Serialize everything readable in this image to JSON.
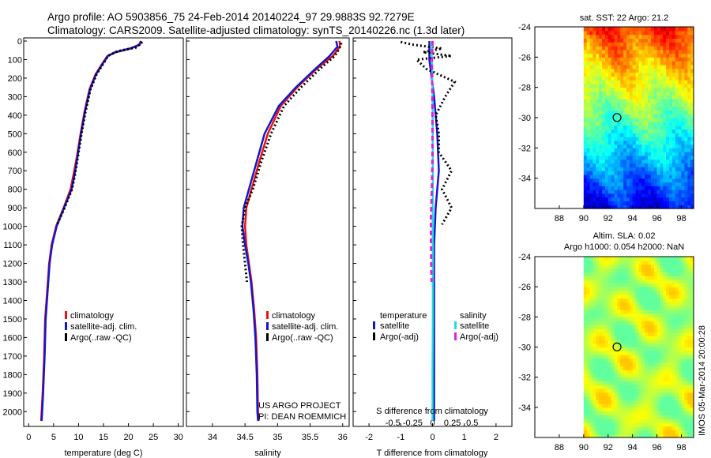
{
  "title": {
    "line1": "Argo profile: AO 5903856_75 24-Feb-2014 20140224_97 29.9883S 92.7279E",
    "line2": "Climatology: CARS2009. Satellite-adjusted climatology: synTS_20140226.nc (1.3d later)"
  },
  "timestamp": "IMOS 05-Mar-2014 20:00:28",
  "project_note": {
    "line1": "US ARGO PROJECT",
    "line2": "PI: DEAN ROEMMICH"
  },
  "colors": {
    "clim": "#ee1111",
    "sat": "#1515cc",
    "argo": "#000000",
    "sat_s": "#22dddd",
    "argo_s": "#dd22dd"
  },
  "chart_data": [
    {
      "id": "temperature",
      "type": "line",
      "xlabel": "temperature (deg C)",
      "xlim": [
        -1,
        31
      ],
      "xticks": [
        0,
        5,
        10,
        15,
        20,
        25,
        30
      ],
      "ylim": [
        0,
        2050
      ],
      "yticks": [
        0,
        100,
        200,
        300,
        400,
        500,
        600,
        700,
        800,
        900,
        1000,
        1100,
        1200,
        1300,
        1400,
        1500,
        1600,
        1700,
        1800,
        1900,
        2000
      ],
      "legend": [
        "climatology",
        "satellite-adj. clim.",
        "Argo(..raw -QC)"
      ],
      "series": [
        {
          "name": "climatology",
          "color": "#ee1111",
          "style": "solid",
          "points": [
            [
              22.5,
              0
            ],
            [
              22.3,
              20
            ],
            [
              20.5,
              40
            ],
            [
              17.5,
              60
            ],
            [
              15.8,
              80
            ],
            [
              14.8,
              120
            ],
            [
              13.4,
              180
            ],
            [
              12.2,
              260
            ],
            [
              11.2,
              380
            ],
            [
              10.4,
              500
            ],
            [
              9.7,
              620
            ],
            [
              9.0,
              720
            ],
            [
              8.4,
              800
            ],
            [
              7.0,
              900
            ],
            [
              5.5,
              1000
            ],
            [
              4.6,
              1100
            ],
            [
              4.1,
              1200
            ],
            [
              3.7,
              1350
            ],
            [
              3.3,
              1500
            ],
            [
              3.1,
              1700
            ],
            [
              2.8,
              1900
            ],
            [
              2.6,
              2000
            ],
            [
              2.5,
              2050
            ]
          ]
        },
        {
          "name": "satellite-adj. clim.",
          "color": "#1515cc",
          "style": "solid",
          "points": [
            [
              22.5,
              0
            ],
            [
              22.2,
              20
            ],
            [
              20.3,
              40
            ],
            [
              17.3,
              60
            ],
            [
              15.9,
              80
            ],
            [
              14.9,
              120
            ],
            [
              13.5,
              180
            ],
            [
              12.3,
              260
            ],
            [
              11.3,
              380
            ],
            [
              10.5,
              500
            ],
            [
              9.8,
              620
            ],
            [
              9.2,
              720
            ],
            [
              8.6,
              800
            ],
            [
              7.1,
              900
            ],
            [
              5.6,
              1000
            ],
            [
              4.7,
              1100
            ],
            [
              4.2,
              1200
            ],
            [
              3.8,
              1350
            ],
            [
              3.4,
              1500
            ],
            [
              3.2,
              1700
            ],
            [
              2.9,
              1900
            ],
            [
              2.7,
              2000
            ],
            [
              2.6,
              2050
            ]
          ]
        },
        {
          "name": "Argo(..raw -QC)",
          "color": "#000000",
          "style": "dot",
          "points": [
            [
              22.8,
              5
            ],
            [
              21.5,
              35
            ],
            [
              17.8,
              55
            ],
            [
              15.9,
              80
            ],
            [
              15.0,
              120
            ],
            [
              13.6,
              180
            ],
            [
              12.4,
              260
            ],
            [
              11.4,
              380
            ],
            [
              10.6,
              500
            ],
            [
              9.9,
              620
            ],
            [
              9.3,
              720
            ],
            [
              8.7,
              800
            ],
            [
              7.2,
              900
            ],
            [
              5.7,
              990
            ]
          ]
        }
      ]
    },
    {
      "id": "salinity",
      "type": "line",
      "xlabel": "salinity",
      "xlim": [
        33.6,
        36.1
      ],
      "xticks": [
        34,
        34.5,
        35,
        35.5,
        36
      ],
      "xticklabels": [
        "34",
        "34.5",
        "35",
        "35.5",
        "36"
      ],
      "ylim": [
        0,
        2050
      ],
      "legend": [
        "climatology",
        "satellite-adj. clim.",
        "Argo(..raw -QC)"
      ],
      "series": [
        {
          "name": "climatology",
          "color": "#ee1111",
          "style": "solid",
          "points": [
            [
              35.95,
              0
            ],
            [
              35.96,
              30
            ],
            [
              35.85,
              80
            ],
            [
              35.6,
              150
            ],
            [
              35.3,
              250
            ],
            [
              35.05,
              350
            ],
            [
              34.85,
              500
            ],
            [
              34.72,
              650
            ],
            [
              34.6,
              800
            ],
            [
              34.52,
              900
            ],
            [
              34.5,
              1000
            ],
            [
              34.52,
              1100
            ],
            [
              34.56,
              1200
            ],
            [
              34.6,
              1300
            ],
            [
              34.64,
              1450
            ],
            [
              34.67,
              1600
            ],
            [
              34.69,
              1800
            ],
            [
              34.7,
              2000
            ],
            [
              34.71,
              2050
            ]
          ]
        },
        {
          "name": "satellite-adj. clim.",
          "color": "#1515cc",
          "style": "solid",
          "points": [
            [
              35.9,
              0
            ],
            [
              35.92,
              30
            ],
            [
              35.8,
              80
            ],
            [
              35.58,
              150
            ],
            [
              35.28,
              250
            ],
            [
              35.02,
              350
            ],
            [
              34.8,
              500
            ],
            [
              34.68,
              650
            ],
            [
              34.56,
              800
            ],
            [
              34.48,
              900
            ],
            [
              34.46,
              1000
            ],
            [
              34.5,
              1100
            ],
            [
              34.55,
              1200
            ],
            [
              34.59,
              1300
            ],
            [
              34.63,
              1450
            ],
            [
              34.66,
              1600
            ],
            [
              34.68,
              1800
            ],
            [
              34.69,
              2000
            ],
            [
              34.7,
              2050
            ]
          ]
        },
        {
          "name": "Argo(..raw -QC)",
          "color": "#000000",
          "style": "dot",
          "points": [
            [
              35.98,
              10
            ],
            [
              35.95,
              40
            ],
            [
              35.88,
              80
            ],
            [
              35.65,
              150
            ],
            [
              35.36,
              250
            ],
            [
              35.1,
              350
            ],
            [
              34.9,
              500
            ],
            [
              34.75,
              650
            ],
            [
              34.62,
              800
            ],
            [
              34.5,
              900
            ],
            [
              34.45,
              1000
            ],
            [
              34.47,
              1100
            ],
            [
              34.5,
              1200
            ],
            [
              34.53,
              1300
            ]
          ]
        }
      ]
    },
    {
      "id": "difference",
      "type": "line",
      "xlabel": "T difference from climatology",
      "xlim": [
        -2.5,
        2.5
      ],
      "xticks": [
        -2,
        -1,
        0,
        1,
        2
      ],
      "top_label": "S difference from climatology",
      "top_ticks": [
        -0.5,
        -0.25,
        0,
        0.25,
        0.5
      ],
      "top_ticklabels": [
        "-0.5",
        "-0.25",
        "0",
        "0.25",
        "0.5"
      ],
      "ylim": [
        0,
        2050
      ],
      "legend_headers": [
        "temperature",
        "salinity"
      ],
      "legend": [
        "satellite",
        "Argo(-adj)",
        "satellite",
        "Argo(-adj)"
      ],
      "series": [
        {
          "name": "T satellite",
          "color": "#1515cc",
          "style": "solid",
          "points": [
            [
              -0.1,
              0
            ],
            [
              -0.1,
              100
            ],
            [
              0.05,
              300
            ],
            [
              0.15,
              500
            ],
            [
              0.2,
              700
            ],
            [
              0.1,
              900
            ],
            [
              0.05,
              1100
            ],
            [
              0.05,
              1300
            ],
            [
              0.05,
              1500
            ],
            [
              0.05,
              1800
            ],
            [
              0.05,
              2050
            ]
          ]
        },
        {
          "name": "T Argo(-adj)",
          "color": "#000000",
          "style": "dot",
          "points": [
            [
              -1.0,
              5
            ],
            [
              -0.6,
              20
            ],
            [
              0.3,
              40
            ],
            [
              -0.3,
              60
            ],
            [
              0.6,
              80
            ],
            [
              -0.5,
              100
            ],
            [
              -0.2,
              150
            ],
            [
              0.7,
              220
            ],
            [
              0.4,
              300
            ],
            [
              0.1,
              400
            ],
            [
              0.2,
              500
            ],
            [
              0.2,
              600
            ],
            [
              0.6,
              700
            ],
            [
              0.3,
              800
            ],
            [
              0.6,
              900
            ],
            [
              0.4,
              960
            ],
            [
              0.3,
              990
            ]
          ]
        },
        {
          "name": "S satellite",
          "color": "#22dddd",
          "style": "solid",
          "points": [
            [
              -0.02,
              0
            ],
            [
              -0.03,
              60
            ],
            [
              -0.01,
              150
            ],
            [
              0.0,
              300
            ],
            [
              0.01,
              600
            ],
            [
              0.01,
              900
            ],
            [
              0.01,
              1200
            ],
            [
              0.01,
              1500
            ],
            [
              0.0,
              1800
            ],
            [
              0.0,
              2050
            ]
          ]
        },
        {
          "name": "S Argo(-adj)",
          "color": "#dd22dd",
          "style": "dash",
          "points": [
            [
              0.0,
              0
            ],
            [
              -0.02,
              100
            ],
            [
              0.0,
              400
            ],
            [
              0.0,
              600
            ],
            [
              -0.02,
              800
            ],
            [
              -0.05,
              950
            ],
            [
              -0.05,
              1050
            ],
            [
              -0.04,
              1200
            ],
            [
              -0.03,
              1300
            ]
          ]
        }
      ]
    }
  ],
  "maps": [
    {
      "id": "sst_map",
      "title": "sat. SST: 22 Argo: 21.2",
      "title2": "",
      "xlim": [
        86,
        99
      ],
      "ylim": [
        -36,
        -24
      ],
      "xticks": [
        88,
        90,
        92,
        94,
        96,
        98
      ],
      "yticks": [
        -34,
        -32,
        -30,
        -28,
        -26,
        -24
      ],
      "marker": [
        92.73,
        -29.99
      ],
      "data_lon_start": 90
    },
    {
      "id": "sla_map",
      "title": "Altim. SLA: 0.02",
      "title2": "Argo h1000: 0.054 h2000: NaN",
      "xlim": [
        86,
        99
      ],
      "ylim": [
        -36,
        -24
      ],
      "xticks": [
        88,
        90,
        92,
        94,
        96,
        98
      ],
      "yticks": [
        -34,
        -32,
        -30,
        -28,
        -26,
        -24
      ],
      "marker": [
        92.73,
        -29.99
      ],
      "data_lon_start": 90
    }
  ]
}
